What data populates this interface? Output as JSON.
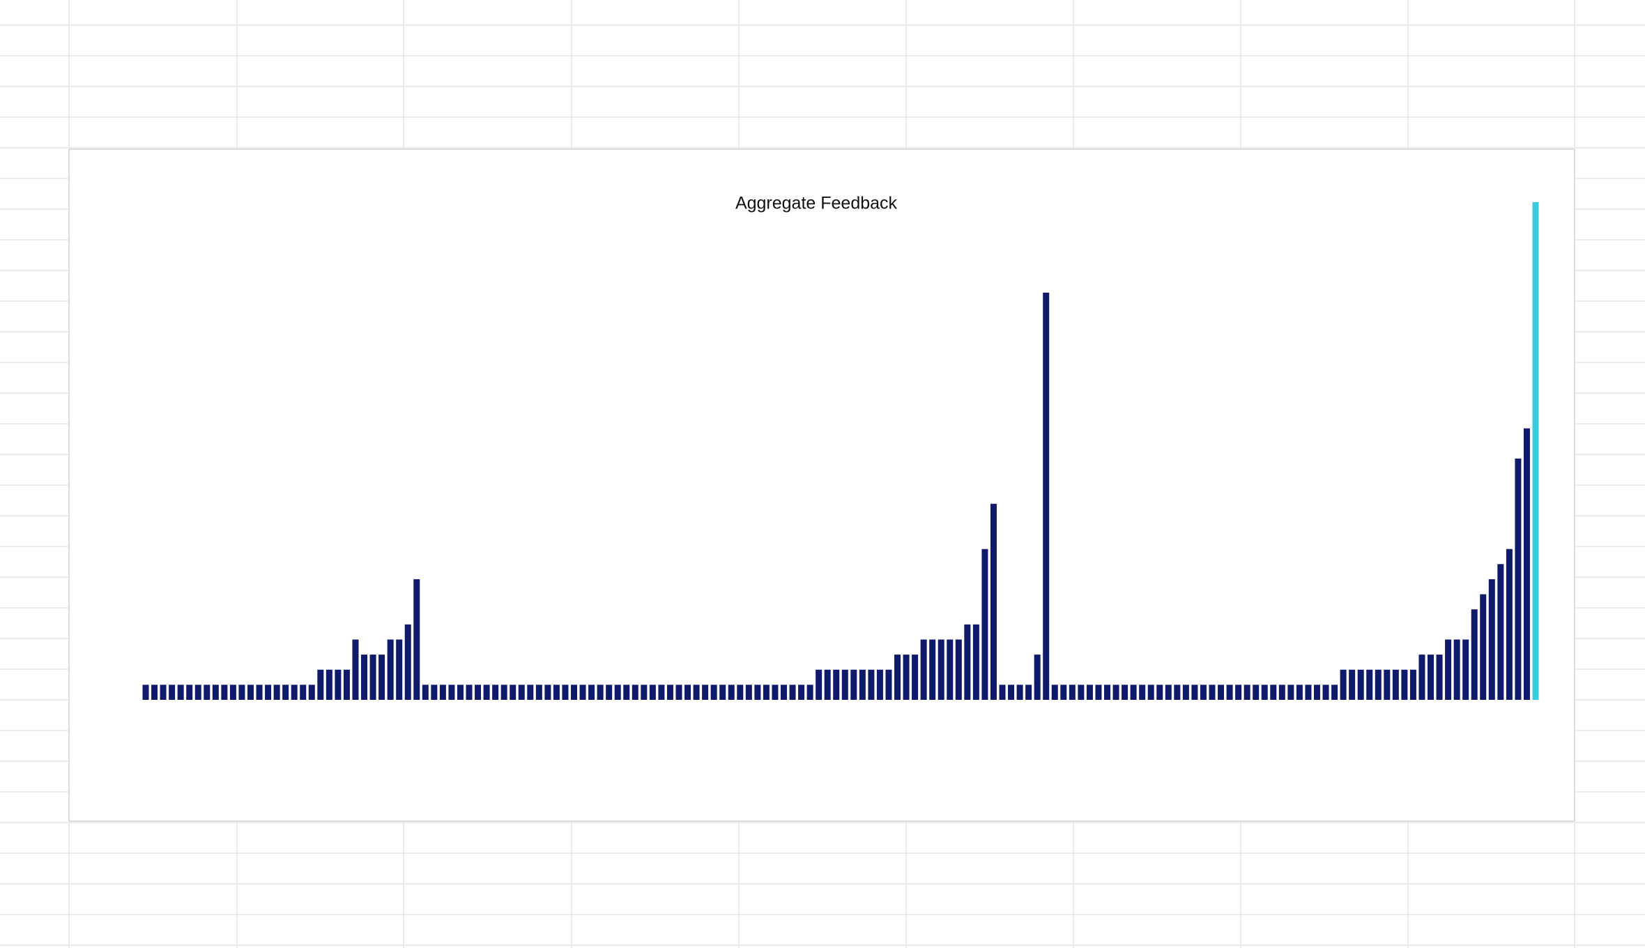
{
  "chart_data": {
    "type": "bar",
    "title": "Aggregate Feedback",
    "categories": [
      null,
      null,
      null,
      null,
      null,
      null,
      null,
      null,
      null,
      null,
      null,
      null,
      null,
      null,
      null,
      null,
      null,
      null,
      null,
      null,
      null,
      null,
      null,
      null,
      null,
      null,
      null,
      null,
      null,
      null,
      null,
      null,
      null,
      null,
      null,
      null,
      null,
      null,
      null,
      null,
      null,
      null,
      null,
      null,
      null,
      null,
      null,
      null,
      null,
      null,
      null,
      null,
      null,
      null,
      null,
      null,
      null,
      null,
      null,
      null,
      null,
      null,
      null,
      null,
      null,
      null,
      null,
      null,
      null,
      null,
      null,
      null,
      null,
      null,
      null,
      null,
      null,
      null,
      null,
      null,
      null,
      null,
      null,
      null,
      null,
      null,
      null,
      null,
      null,
      null,
      null,
      null,
      null,
      null,
      null,
      null,
      null,
      null,
      null,
      null,
      null,
      null,
      null,
      null,
      null,
      null,
      null,
      null,
      null,
      null,
      null,
      null,
      null,
      null,
      null,
      null,
      null,
      null,
      null,
      null,
      null,
      null,
      null,
      null,
      null,
      null,
      null,
      null,
      null,
      null,
      null,
      null,
      null,
      null,
      null,
      null,
      null,
      null,
      null,
      null,
      null,
      null,
      null,
      null,
      null,
      null,
      null,
      null,
      null,
      null,
      null,
      null,
      null,
      null,
      null,
      null,
      null,
      null,
      null,
      null
    ],
    "values": [
      1,
      1,
      1,
      1,
      1,
      1,
      1,
      1,
      1,
      1,
      1,
      1,
      1,
      1,
      1,
      1,
      1,
      1,
      1,
      1,
      2,
      2,
      2,
      2,
      4,
      3,
      3,
      3,
      4,
      4,
      5,
      8,
      1,
      1,
      1,
      1,
      1,
      1,
      1,
      1,
      1,
      1,
      1,
      1,
      1,
      1,
      1,
      1,
      1,
      1,
      1,
      1,
      1,
      1,
      1,
      1,
      1,
      1,
      1,
      1,
      1,
      1,
      1,
      1,
      1,
      1,
      1,
      1,
      1,
      1,
      1,
      1,
      1,
      1,
      1,
      1,
      1,
      2,
      2,
      2,
      2,
      2,
      2,
      2,
      2,
      2,
      3,
      3,
      3,
      4,
      4,
      4,
      4,
      4,
      5,
      5,
      10,
      13,
      1,
      1,
      1,
      1,
      3,
      27,
      1,
      1,
      1,
      1,
      1,
      1,
      1,
      1,
      1,
      1,
      1,
      1,
      1,
      1,
      1,
      1,
      1,
      1,
      1,
      1,
      1,
      1,
      1,
      1,
      1,
      1,
      1,
      1,
      1,
      1,
      1,
      1,
      1,
      2,
      2,
      2,
      2,
      2,
      2,
      2,
      2,
      2,
      3,
      3,
      3,
      4,
      4,
      4,
      6,
      7,
      8,
      9,
      10,
      16,
      18,
      33
    ],
    "colors": [
      "#0f1a6b",
      "#0f1a6b",
      "#0f1a6b",
      "#0f1a6b",
      "#0f1a6b",
      "#0f1a6b",
      "#0f1a6b",
      "#0f1a6b",
      "#0f1a6b",
      "#0f1a6b",
      "#0f1a6b",
      "#0f1a6b",
      "#0f1a6b",
      "#0f1a6b",
      "#0f1a6b",
      "#0f1a6b",
      "#0f1a6b",
      "#0f1a6b",
      "#0f1a6b",
      "#0f1a6b",
      "#0f1a6b",
      "#0f1a6b",
      "#0f1a6b",
      "#0f1a6b",
      "#0f1a6b",
      "#0f1a6b",
      "#0f1a6b",
      "#0f1a6b",
      "#0f1a6b",
      "#0f1a6b",
      "#0f1a6b",
      "#0f1a6b",
      "#0f1a6b",
      "#0f1a6b",
      "#0f1a6b",
      "#0f1a6b",
      "#0f1a6b",
      "#0f1a6b",
      "#0f1a6b",
      "#0f1a6b",
      "#0f1a6b",
      "#0f1a6b",
      "#0f1a6b",
      "#0f1a6b",
      "#0f1a6b",
      "#0f1a6b",
      "#0f1a6b",
      "#0f1a6b",
      "#0f1a6b",
      "#0f1a6b",
      "#0f1a6b",
      "#0f1a6b",
      "#0f1a6b",
      "#0f1a6b",
      "#0f1a6b",
      "#0f1a6b",
      "#0f1a6b",
      "#0f1a6b",
      "#0f1a6b",
      "#0f1a6b",
      "#0f1a6b",
      "#0f1a6b",
      "#0f1a6b",
      "#0f1a6b",
      "#0f1a6b",
      "#0f1a6b",
      "#0f1a6b",
      "#0f1a6b",
      "#0f1a6b",
      "#0f1a6b",
      "#0f1a6b",
      "#0f1a6b",
      "#0f1a6b",
      "#0f1a6b",
      "#0f1a6b",
      "#0f1a6b",
      "#0f1a6b",
      "#0f1a6b",
      "#0f1a6b",
      "#0f1a6b",
      "#0f1a6b",
      "#0f1a6b",
      "#0f1a6b",
      "#0f1a6b",
      "#0f1a6b",
      "#0f1a6b",
      "#0f1a6b",
      "#0f1a6b",
      "#0f1a6b",
      "#0f1a6b",
      "#0f1a6b",
      "#0f1a6b",
      "#0f1a6b",
      "#0f1a6b",
      "#0f1a6b",
      "#0f1a6b",
      "#0f1a6b",
      "#0f1a6b",
      "#0f1a6b",
      "#0f1a6b",
      "#0f1a6b",
      "#0f1a6b",
      "#0f1a6b",
      "#0f1a6b",
      "#0f1a6b",
      "#0f1a6b",
      "#0f1a6b",
      "#0f1a6b",
      "#0f1a6b",
      "#0f1a6b",
      "#0f1a6b",
      "#0f1a6b",
      "#0f1a6b",
      "#0f1a6b",
      "#0f1a6b",
      "#0f1a6b",
      "#0f1a6b",
      "#0f1a6b",
      "#0f1a6b",
      "#0f1a6b",
      "#0f1a6b",
      "#0f1a6b",
      "#0f1a6b",
      "#0f1a6b",
      "#0f1a6b",
      "#0f1a6b",
      "#0f1a6b",
      "#0f1a6b",
      "#0f1a6b",
      "#0f1a6b",
      "#0f1a6b",
      "#0f1a6b",
      "#0f1a6b",
      "#0f1a6b",
      "#0f1a6b",
      "#0f1a6b",
      "#0f1a6b",
      "#0f1a6b",
      "#0f1a6b",
      "#0f1a6b",
      "#0f1a6b",
      "#0f1a6b",
      "#0f1a6b",
      "#0f1a6b",
      "#0f1a6b",
      "#0f1a6b",
      "#0f1a6b",
      "#0f1a6b",
      "#0f1a6b",
      "#0f1a6b",
      "#0f1a6b",
      "#0f1a6b",
      "#0f1a6b",
      "#0f1a6b",
      "#0f1a6b",
      "#0f1a6b",
      "#0f1a6b",
      "#0f1a6b",
      "#0f1a6b",
      "#3ccbdc"
    ],
    "ylim": [
      0,
      33
    ]
  }
}
